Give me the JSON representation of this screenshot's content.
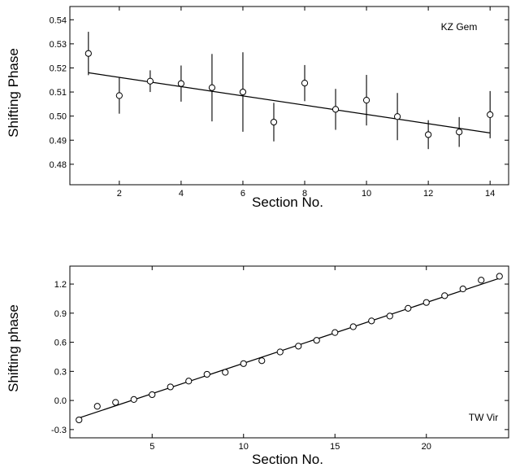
{
  "chart_data": [
    {
      "type": "scatter",
      "xlabel": "Section No.",
      "ylabel": "Shifting Phase",
      "annotation": "KZ Gem",
      "xlim": [
        0.4,
        14.6
      ],
      "ylim": [
        0.4715,
        0.5455
      ],
      "xticks": [
        2,
        4,
        6,
        8,
        10,
        12,
        14
      ],
      "yticks": [
        0.48,
        0.49,
        0.5,
        0.51,
        0.52,
        0.53,
        0.54
      ],
      "ytick_labels": [
        "0.48",
        "0.49",
        "0.50",
        "0.51",
        "0.52",
        "0.53",
        "0.54"
      ],
      "grid": false,
      "series": [
        {
          "marker": "open-circle",
          "points": [
            {
              "x": 1,
              "y": 0.526,
              "err": 0.009
            },
            {
              "x": 2,
              "y": 0.5085,
              "err": 0.0075
            },
            {
              "x": 3,
              "y": 0.5145,
              "err": 0.0045
            },
            {
              "x": 4,
              "y": 0.5135,
              "err": 0.0075
            },
            {
              "x": 5,
              "y": 0.5118,
              "err": 0.014
            },
            {
              "x": 6,
              "y": 0.51,
              "err": 0.0165
            },
            {
              "x": 7,
              "y": 0.4975,
              "err": 0.008
            },
            {
              "x": 8,
              "y": 0.5137,
              "err": 0.0075
            },
            {
              "x": 9,
              "y": 0.5028,
              "err": 0.0085
            },
            {
              "x": 10,
              "y": 0.5066,
              "err": 0.0105
            },
            {
              "x": 11,
              "y": 0.4998,
              "err": 0.0098
            },
            {
              "x": 12,
              "y": 0.4923,
              "err": 0.006
            },
            {
              "x": 13,
              "y": 0.4934,
              "err": 0.0062
            },
            {
              "x": 14,
              "y": 0.5006,
              "err": 0.0098
            }
          ]
        }
      ],
      "fit_line": {
        "x": [
          1,
          14
        ],
        "y": [
          0.518,
          0.493
        ]
      }
    },
    {
      "type": "scatter",
      "xlabel": "Section No.",
      "ylabel": "Shifting phase",
      "annotation": "TW Vir",
      "xlim": [
        0.5,
        24.5
      ],
      "ylim": [
        -0.385,
        1.385
      ],
      "xticks": [
        5,
        10,
        15,
        20
      ],
      "yticks": [
        -0.3,
        0.0,
        0.3,
        0.6,
        0.9,
        1.2
      ],
      "ytick_labels": [
        "-0.3",
        "0.0",
        "0.3",
        "0.6",
        "0.9",
        "1.2"
      ],
      "grid": false,
      "series": [
        {
          "marker": "open-circle",
          "points": [
            {
              "x": 1,
              "y": -0.2
            },
            {
              "x": 2,
              "y": -0.06
            },
            {
              "x": 3,
              "y": -0.02
            },
            {
              "x": 4,
              "y": 0.01
            },
            {
              "x": 5,
              "y": 0.06
            },
            {
              "x": 6,
              "y": 0.14
            },
            {
              "x": 7,
              "y": 0.2
            },
            {
              "x": 8,
              "y": 0.27
            },
            {
              "x": 9,
              "y": 0.29
            },
            {
              "x": 10,
              "y": 0.38
            },
            {
              "x": 11,
              "y": 0.41
            },
            {
              "x": 12,
              "y": 0.5
            },
            {
              "x": 13,
              "y": 0.56
            },
            {
              "x": 14,
              "y": 0.62
            },
            {
              "x": 15,
              "y": 0.7
            },
            {
              "x": 16,
              "y": 0.76
            },
            {
              "x": 17,
              "y": 0.82
            },
            {
              "x": 18,
              "y": 0.87
            },
            {
              "x": 19,
              "y": 0.95
            },
            {
              "x": 20,
              "y": 1.01
            },
            {
              "x": 21,
              "y": 1.08
            },
            {
              "x": 22,
              "y": 1.15
            },
            {
              "x": 23,
              "y": 1.24
            },
            {
              "x": 24,
              "y": 1.28
            }
          ]
        }
      ],
      "fit_line": {
        "x": [
          1,
          24
        ],
        "y": [
          -0.18,
          1.26
        ]
      }
    }
  ]
}
